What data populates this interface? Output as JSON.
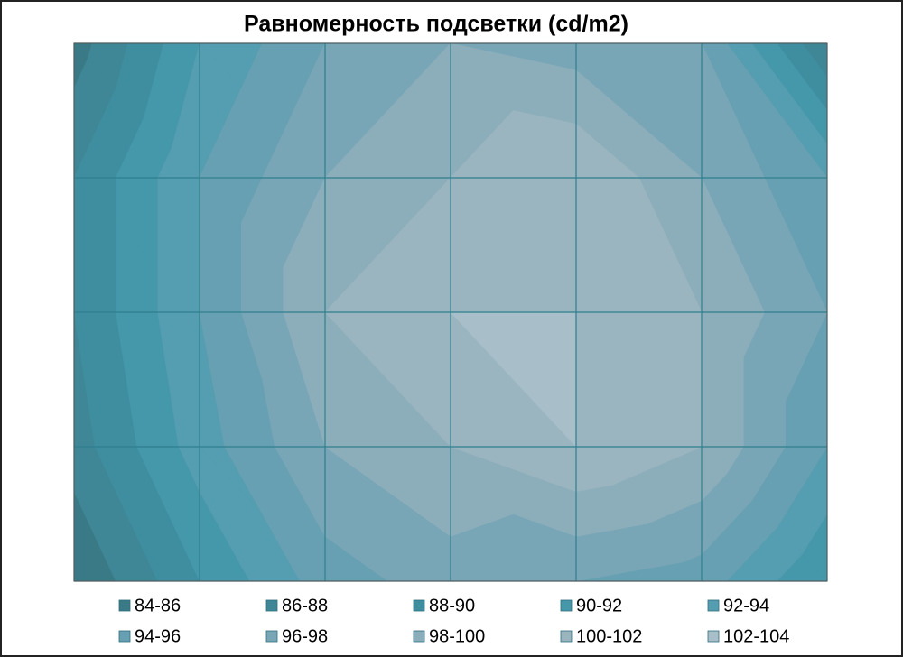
{
  "chart_data": {
    "type": "contour",
    "title": "Равномерность подсветки (cd/m2)",
    "z": [
      [
        85,
        92,
        96,
        98,
        97,
        96,
        86
      ],
      [
        88,
        94,
        98,
        100,
        102,
        98,
        94
      ],
      [
        88,
        94,
        100,
        102,
        102,
        100,
        96
      ],
      [
        87,
        93,
        98,
        100,
        102,
        100,
        94
      ],
      [
        84,
        90,
        95,
        97,
        96,
        95,
        90
      ]
    ],
    "series": [
      {
        "name": "84-86",
        "color": "#3a7a86"
      },
      {
        "name": "86-88",
        "color": "#3f8796"
      },
      {
        "name": "88-90",
        "color": "#3e8ea0"
      },
      {
        "name": "90-92",
        "color": "#4597aa"
      },
      {
        "name": "92-94",
        "color": "#559db0"
      },
      {
        "name": "94-96",
        "color": "#67a0b2"
      },
      {
        "name": "96-98",
        "color": "#78a6b6"
      },
      {
        "name": "98-100",
        "color": "#8caeba"
      },
      {
        "name": "100-102",
        "color": "#9ab5c0"
      },
      {
        "name": "102-104",
        "color": "#a8bfc9"
      }
    ],
    "grid": true
  }
}
